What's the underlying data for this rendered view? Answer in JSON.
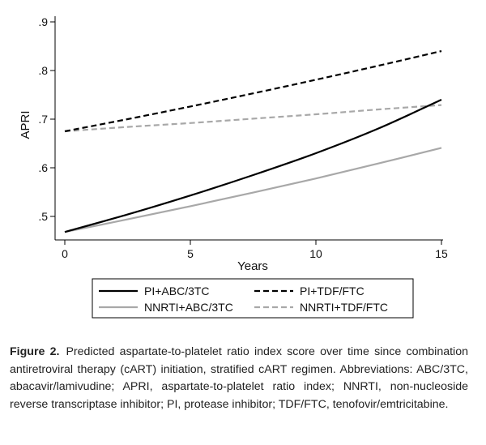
{
  "chart_data": {
    "type": "line",
    "xlabel": "Years",
    "ylabel": "APRI",
    "xlim": [
      0,
      15
    ],
    "ylim": [
      0.45,
      0.92
    ],
    "x_ticks": [
      0,
      5,
      10,
      15
    ],
    "x_tick_labels": [
      "0",
      "5",
      "10",
      "15"
    ],
    "y_ticks": [
      0.5,
      0.6,
      0.7,
      0.8,
      0.9
    ],
    "y_tick_labels": [
      ".5",
      ".6",
      ".7",
      ".8",
      ".9"
    ],
    "grid": false,
    "legend_position": "bottom",
    "x": [
      0,
      2.5,
      5,
      7.5,
      10,
      12.5,
      15
    ],
    "series": [
      {
        "name": "PI+ABC/3TC",
        "style": "solid",
        "color": "#000000",
        "values": [
          0.468,
          0.504,
          0.543,
          0.585,
          0.63,
          0.681,
          0.74
        ]
      },
      {
        "name": "PI+TDF/FTC",
        "style": "dashed",
        "color": "#000000",
        "values": [
          0.675,
          0.7,
          0.726,
          0.753,
          0.781,
          0.81,
          0.84
        ]
      },
      {
        "name": "NNRTI+ABC/3TC",
        "style": "solid",
        "color": "#a8a8a8",
        "values": [
          0.468,
          0.494,
          0.521,
          0.549,
          0.578,
          0.609,
          0.641
        ]
      },
      {
        "name": "NNRTI+TDF/FTC",
        "style": "dashed",
        "color": "#a8a8a8",
        "values": [
          0.675,
          0.684,
          0.692,
          0.701,
          0.71,
          0.72,
          0.729
        ]
      }
    ]
  },
  "caption": {
    "label": "Figure 2.",
    "text": "Predicted aspartate-to-platelet ratio index score over time since combination antiretroviral therapy (cART) initiation, stratified cART regimen. Abbreviations: ABC/3TC, abacavir/lamivudine; APRI, aspartate-to-platelet ratio index; NNRTI, non-nucleoside reverse transcriptase inhibitor; PI, protease inhibitor; TDF/FTC, tenofovir/emtricitabine."
  }
}
